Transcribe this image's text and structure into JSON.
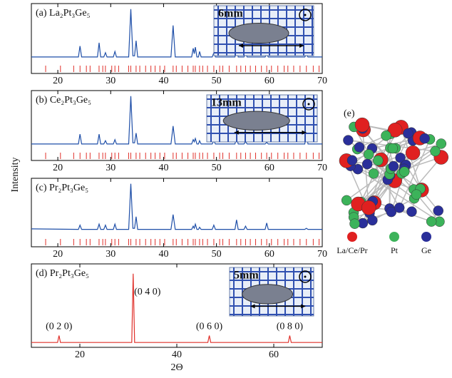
{
  "chart_data": [
    {
      "type": "line",
      "title": "(a) La₂Pt₃Ge₅",
      "inset_label": "6mm",
      "color": "#1f4fa8",
      "reflection_color": "#e0302a",
      "x": [
        15,
        23.9,
        24.2,
        24.5,
        27.5,
        27.8,
        28.1,
        28.7,
        29.0,
        29.3,
        30.5,
        30.8,
        31.1,
        33.4,
        33.8,
        34.2,
        34.5,
        34.8,
        35.1,
        41.4,
        41.8,
        42.2,
        45.3,
        45.6,
        45.8,
        46.0,
        46.3,
        46.6,
        46.8,
        47.1,
        49.2,
        49.5,
        49.8,
        53.5,
        53.8,
        54.1,
        55.2,
        55.5,
        55.8,
        59.2,
        59.5,
        59.8,
        66.7,
        67.0,
        67.3,
        70
      ],
      "values": [
        12,
        12,
        32,
        12,
        12,
        38,
        12,
        12,
        20,
        12,
        12,
        22,
        12,
        12,
        100,
        14,
        14,
        42,
        12,
        12,
        70,
        12,
        12,
        28,
        18,
        30,
        12,
        12,
        22,
        12,
        12,
        20,
        12,
        12,
        30,
        12,
        12,
        18,
        12,
        12,
        17,
        12,
        12,
        16,
        12,
        12
      ],
      "reflections": [
        17.7,
        20.5,
        23.0,
        24.2,
        25.4,
        26.1,
        27.8,
        28.5,
        29.0,
        30.2,
        30.8,
        31.5,
        33.4,
        33.8,
        34.8,
        35.5,
        36.6,
        37.6,
        38.4,
        39.3,
        40.2,
        41.8,
        42.4,
        43.5,
        44.6,
        45.6,
        46.0,
        46.8,
        47.4,
        48.3,
        49.5,
        50.6,
        51.2,
        52.4,
        53.8,
        54.6,
        55.5,
        56.4,
        57.4,
        58.5,
        59.5,
        60.4,
        61.6,
        62.8,
        63.5,
        64.6,
        65.8,
        67.0,
        68.3,
        69.4
      ],
      "xlim": [
        15,
        70
      ],
      "xticks": [
        20,
        30,
        40,
        50,
        60,
        70
      ],
      "ylim": [
        0,
        105
      ]
    },
    {
      "type": "line",
      "title": "(b) Ce₂Pt₃Ge₅",
      "inset_label": "13mm",
      "color": "#1f4fa8",
      "reflection_color": "#e0302a",
      "x": [
        15,
        23.9,
        24.2,
        24.5,
        27.5,
        27.8,
        28.1,
        28.7,
        29.0,
        29.3,
        30.5,
        30.8,
        31.1,
        33.4,
        33.8,
        34.2,
        34.5,
        34.8,
        35.1,
        41.4,
        41.8,
        42.2,
        45.3,
        45.6,
        45.8,
        46.0,
        46.3,
        46.6,
        46.8,
        47.1,
        49.2,
        49.5,
        49.8,
        53.5,
        53.8,
        54.1,
        55.2,
        55.5,
        55.8,
        59.2,
        59.5,
        59.8,
        66.7,
        67.0,
        67.3,
        70
      ],
      "values": [
        12,
        12,
        30,
        12,
        12,
        30,
        12,
        12,
        18,
        12,
        12,
        20,
        12,
        12,
        100,
        14,
        14,
        32,
        12,
        12,
        45,
        12,
        12,
        20,
        16,
        22,
        12,
        12,
        18,
        12,
        12,
        18,
        12,
        12,
        25,
        12,
        12,
        16,
        12,
        12,
        15,
        12,
        12,
        30,
        12,
        12
      ],
      "reflections": [
        17.7,
        20.5,
        23.0,
        24.2,
        25.4,
        26.1,
        27.8,
        28.5,
        29.0,
        30.2,
        30.8,
        31.5,
        33.4,
        33.8,
        34.8,
        35.5,
        36.6,
        37.6,
        38.4,
        39.3,
        40.2,
        41.8,
        42.4,
        43.5,
        44.6,
        45.6,
        46.0,
        46.8,
        47.4,
        48.3,
        49.5,
        50.6,
        51.2,
        52.4,
        53.8,
        54.6,
        55.5,
        56.4,
        57.4,
        58.5,
        59.5,
        60.4,
        61.6,
        62.8,
        63.5,
        64.6,
        65.8,
        67.0,
        68.3,
        69.4
      ],
      "xlim": [
        15,
        70
      ],
      "xticks": [
        20,
        30,
        40,
        50,
        60,
        70
      ],
      "ylim": [
        0,
        105
      ]
    },
    {
      "type": "line",
      "title": "(c) Pr₂Pt₃Ge₅",
      "color": "#1f4fa8",
      "reflection_color": "#e0302a",
      "x": [
        15,
        23.9,
        24.2,
        24.5,
        27.5,
        27.8,
        28.1,
        28.7,
        29.0,
        29.3,
        30.5,
        30.8,
        31.1,
        33.4,
        33.8,
        34.2,
        34.5,
        34.8,
        35.1,
        41.4,
        41.8,
        42.2,
        45.3,
        45.6,
        45.8,
        46.0,
        46.3,
        46.6,
        46.8,
        47.1,
        49.2,
        49.5,
        49.8,
        53.5,
        53.8,
        54.1,
        55.2,
        55.5,
        55.8,
        59.2,
        59.5,
        59.8,
        66.7,
        67.0,
        67.3,
        70
      ],
      "values": [
        15,
        14,
        22,
        14,
        14,
        24,
        14,
        14,
        22,
        14,
        14,
        24,
        14,
        14,
        100,
        16,
        16,
        38,
        14,
        14,
        42,
        14,
        14,
        20,
        16,
        24,
        14,
        14,
        18,
        14,
        14,
        22,
        14,
        14,
        32,
        14,
        14,
        20,
        14,
        14,
        26,
        14,
        14,
        16,
        14,
        14
      ],
      "reflections": [
        17.7,
        20.5,
        23.0,
        24.2,
        25.4,
        26.1,
        27.8,
        28.5,
        29.0,
        30.2,
        30.8,
        31.5,
        33.4,
        33.8,
        34.8,
        35.5,
        36.6,
        37.6,
        38.4,
        39.3,
        40.2,
        41.8,
        42.4,
        43.5,
        44.6,
        45.6,
        46.0,
        46.8,
        47.4,
        48.3,
        49.5,
        50.6,
        51.2,
        52.4,
        53.8,
        54.6,
        55.5,
        56.4,
        57.4,
        58.5,
        59.5,
        60.4,
        61.6,
        62.8,
        63.5,
        64.6,
        65.8,
        67.0,
        68.3,
        69.4
      ],
      "xlim": [
        15,
        70
      ],
      "xticks": [
        20,
        30,
        40,
        50,
        60,
        70
      ],
      "ylim": [
        0,
        105
      ]
    },
    {
      "type": "line",
      "title": "(d) Pr₂Pt₃Ge₅",
      "inset_label": "5mm",
      "x_label": "2Θ",
      "color": "#e0302a",
      "x": [
        10,
        15.4,
        15.7,
        16.0,
        30.7,
        31.0,
        31.3,
        46.4,
        46.7,
        47.0,
        63.0,
        63.3,
        63.6,
        70
      ],
      "values": [
        0,
        0,
        10,
        0,
        0,
        100,
        0,
        0,
        10,
        0,
        0,
        10,
        0,
        0
      ],
      "annotations": [
        {
          "text": "(0 2 0)",
          "x": 15.7
        },
        {
          "text": "(0 4 0)",
          "x": 31.0
        },
        {
          "text": "(0 6 0)",
          "x": 46.7
        },
        {
          "text": "(0 8 0)",
          "x": 63.3
        }
      ],
      "xlim": [
        10,
        70
      ],
      "xticks": [
        20,
        40,
        60
      ],
      "ylim": [
        -5,
        110
      ]
    }
  ],
  "y_label": "Intensity",
  "structure": {
    "label": "(e)",
    "legend": [
      {
        "name": "La/Ce/Pr",
        "color": "#e02020"
      },
      {
        "name": "Pt",
        "color": "#3cb35a"
      },
      {
        "name": "Ge",
        "color": "#2a2f9a"
      }
    ]
  }
}
